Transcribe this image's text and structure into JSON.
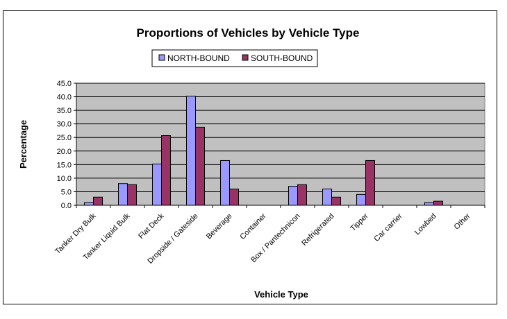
{
  "chart_data": {
    "type": "bar",
    "title": "Proportions of Vehicles by Vehicle Type",
    "xlabel": "Vehicle Type",
    "ylabel": "Percentage",
    "ylim": [
      0,
      45
    ],
    "ytick_step": 5,
    "grid": true,
    "legend_position": "top-center",
    "categories": [
      "Tanker Dry Bulk",
      "Tanker Liquid Bulk",
      "Flat Deck",
      "Dropside / Gateside",
      "Beverage",
      "Container",
      "Box / Pantechnicon",
      "Refrigerated",
      "Tipper",
      "Car carrier",
      "Lowbed",
      "Other"
    ],
    "series": [
      {
        "name": "NORTH-BOUND",
        "color": "#9999ff",
        "values": [
          1.0,
          8.0,
          15.2,
          40.2,
          16.5,
          0,
          7.0,
          6.0,
          4.0,
          0,
          1.0,
          0
        ]
      },
      {
        "name": "SOUTH-BOUND",
        "color": "#993366",
        "values": [
          3.0,
          7.6,
          25.7,
          28.8,
          6.0,
          0,
          7.6,
          3.0,
          16.5,
          0,
          1.5,
          0
        ]
      }
    ],
    "plot_background": "#c0c0c0"
  }
}
